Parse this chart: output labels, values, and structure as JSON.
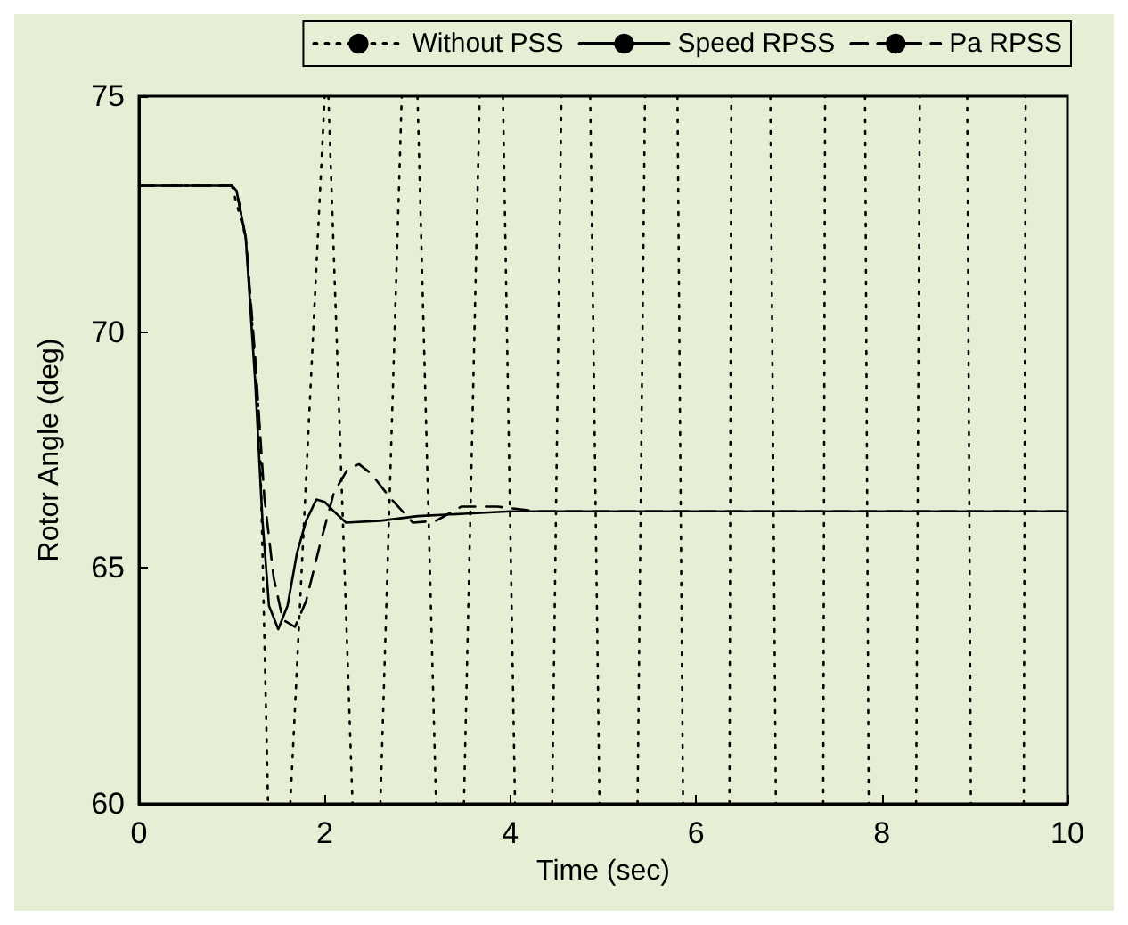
{
  "chart_data": {
    "type": "line",
    "xlabel": "Time (sec)",
    "ylabel": "Rotor Angle (deg)",
    "xlim": [
      0,
      10
    ],
    "ylim": [
      60,
      75
    ],
    "xticks": [
      0,
      2,
      4,
      6,
      8,
      10
    ],
    "yticks": [
      60,
      65,
      70,
      75
    ],
    "grid": false,
    "legend": "top right",
    "marker": "none",
    "series": [
      {
        "name": "Without PSS",
        "color": "#000000",
        "line_style": "dotted",
        "x": [
          0,
          1.0,
          1.15,
          1.3,
          1.39,
          1.5,
          1.63,
          2.0,
          2.02,
          2.04,
          2.3,
          2.45,
          2.6,
          2.83,
          2.9,
          3.0,
          3.2,
          3.35,
          3.5,
          3.67,
          3.8,
          3.92,
          4.05,
          4.25,
          4.45,
          4.55,
          4.7,
          4.86,
          4.96,
          5.15,
          5.37,
          5.45,
          5.6,
          5.8,
          5.86,
          6.1,
          6.36,
          6.38,
          6.6,
          6.8,
          6.86,
          7.1,
          7.37,
          7.39,
          7.6,
          7.82,
          7.86,
          8.1,
          8.37,
          8.41,
          8.7,
          8.92,
          8.96,
          9.2,
          9.53,
          9.55
        ],
        "values": [
          73.1,
          73.1,
          72,
          68,
          60,
          null,
          60,
          75,
          null,
          75,
          60,
          null,
          60,
          75,
          null,
          75,
          60,
          null,
          60,
          75,
          null,
          75,
          60,
          null,
          60,
          75,
          null,
          75,
          60,
          null,
          60,
          75,
          null,
          75,
          60,
          null,
          60,
          75,
          null,
          75,
          60,
          null,
          60,
          75,
          null,
          75,
          60,
          null,
          60,
          75,
          null,
          75,
          60,
          null,
          60,
          75
        ]
      },
      {
        "name": "Speed RPSS",
        "color": "#000000",
        "line_style": "solid",
        "x": [
          0,
          1.0,
          1.05,
          1.15,
          1.25,
          1.33,
          1.4,
          1.5,
          1.6,
          1.7,
          1.8,
          1.91,
          2.0,
          2.1,
          2.23,
          2.6,
          3.0,
          3.5,
          4.0,
          5.0,
          10
        ],
        "values": [
          73.1,
          73.1,
          73.0,
          72.0,
          69.0,
          66.0,
          64.2,
          63.7,
          64.2,
          65.3,
          66.0,
          66.45,
          66.4,
          66.2,
          65.96,
          66.0,
          66.1,
          66.15,
          66.2,
          66.2,
          66.2
        ]
      },
      {
        "name": "Pa RPSS",
        "color": "#000000",
        "line_style": "dashed",
        "x": [
          0,
          1.0,
          1.05,
          1.15,
          1.25,
          1.35,
          1.45,
          1.55,
          1.68,
          1.8,
          1.95,
          2.1,
          2.25,
          2.37,
          2.5,
          2.7,
          2.95,
          3.2,
          3.47,
          3.86,
          4.3,
          5.0,
          10
        ],
        "values": [
          73.1,
          73.1,
          73.0,
          72.0,
          69.5,
          66.5,
          64.8,
          63.9,
          63.75,
          64.3,
          65.5,
          66.6,
          67.1,
          67.2,
          67.0,
          66.5,
          65.96,
          66.0,
          66.3,
          66.3,
          66.2,
          66.2,
          66.2
        ]
      }
    ]
  }
}
